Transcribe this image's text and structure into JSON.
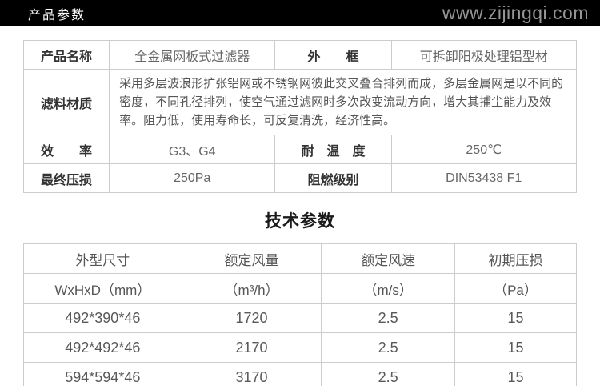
{
  "header": {
    "title": "产品参数",
    "website": "www.zijingqi.com"
  },
  "spec_table": {
    "product_name_label": "产品名称",
    "product_name_value": "全金属网板式过滤器",
    "frame_label": "外　　框",
    "frame_value": "可拆卸阳极处理铝型材",
    "material_label": "滤料材质",
    "material_value": "采用多层波浪形扩张铝网或不锈钢网彼此交叉叠合排列而成，多层金属网是以不同的密度，不同孔径排列，使空气通过滤网时多次改变流动方向，增大其捕尘能力及效率。阻力低，使用寿命长，可反复清洗，经济性高。",
    "efficiency_label": "效　　率",
    "efficiency_value": "G3、G4",
    "temperature_label": "耐　温　度",
    "temperature_value": "250℃",
    "pressure_label": "最终压损",
    "pressure_value": "250Pa",
    "flame_label": "阻燃级别",
    "flame_value": "DIN53438 F1"
  },
  "tech_section": {
    "title": "技术参数",
    "columns": [
      "外型尺寸",
      "额定风量",
      "额定风速",
      "初期压损"
    ],
    "units": [
      "WxHxD（mm）",
      "（m³/h）",
      "（m/s）",
      "（Pa）"
    ],
    "rows": [
      [
        "492*390*46",
        "1720",
        "2.5",
        "15"
      ],
      [
        "492*492*46",
        "2170",
        "2.5",
        "15"
      ],
      [
        "594*594*46",
        "3170",
        "2.5",
        "15"
      ]
    ]
  },
  "colors": {
    "header_bg": "#000000",
    "header_title": "#ffffff",
    "header_site": "#969696",
    "table_border": "#cccccc",
    "label_text": "#333333",
    "value_text": "#666666"
  }
}
